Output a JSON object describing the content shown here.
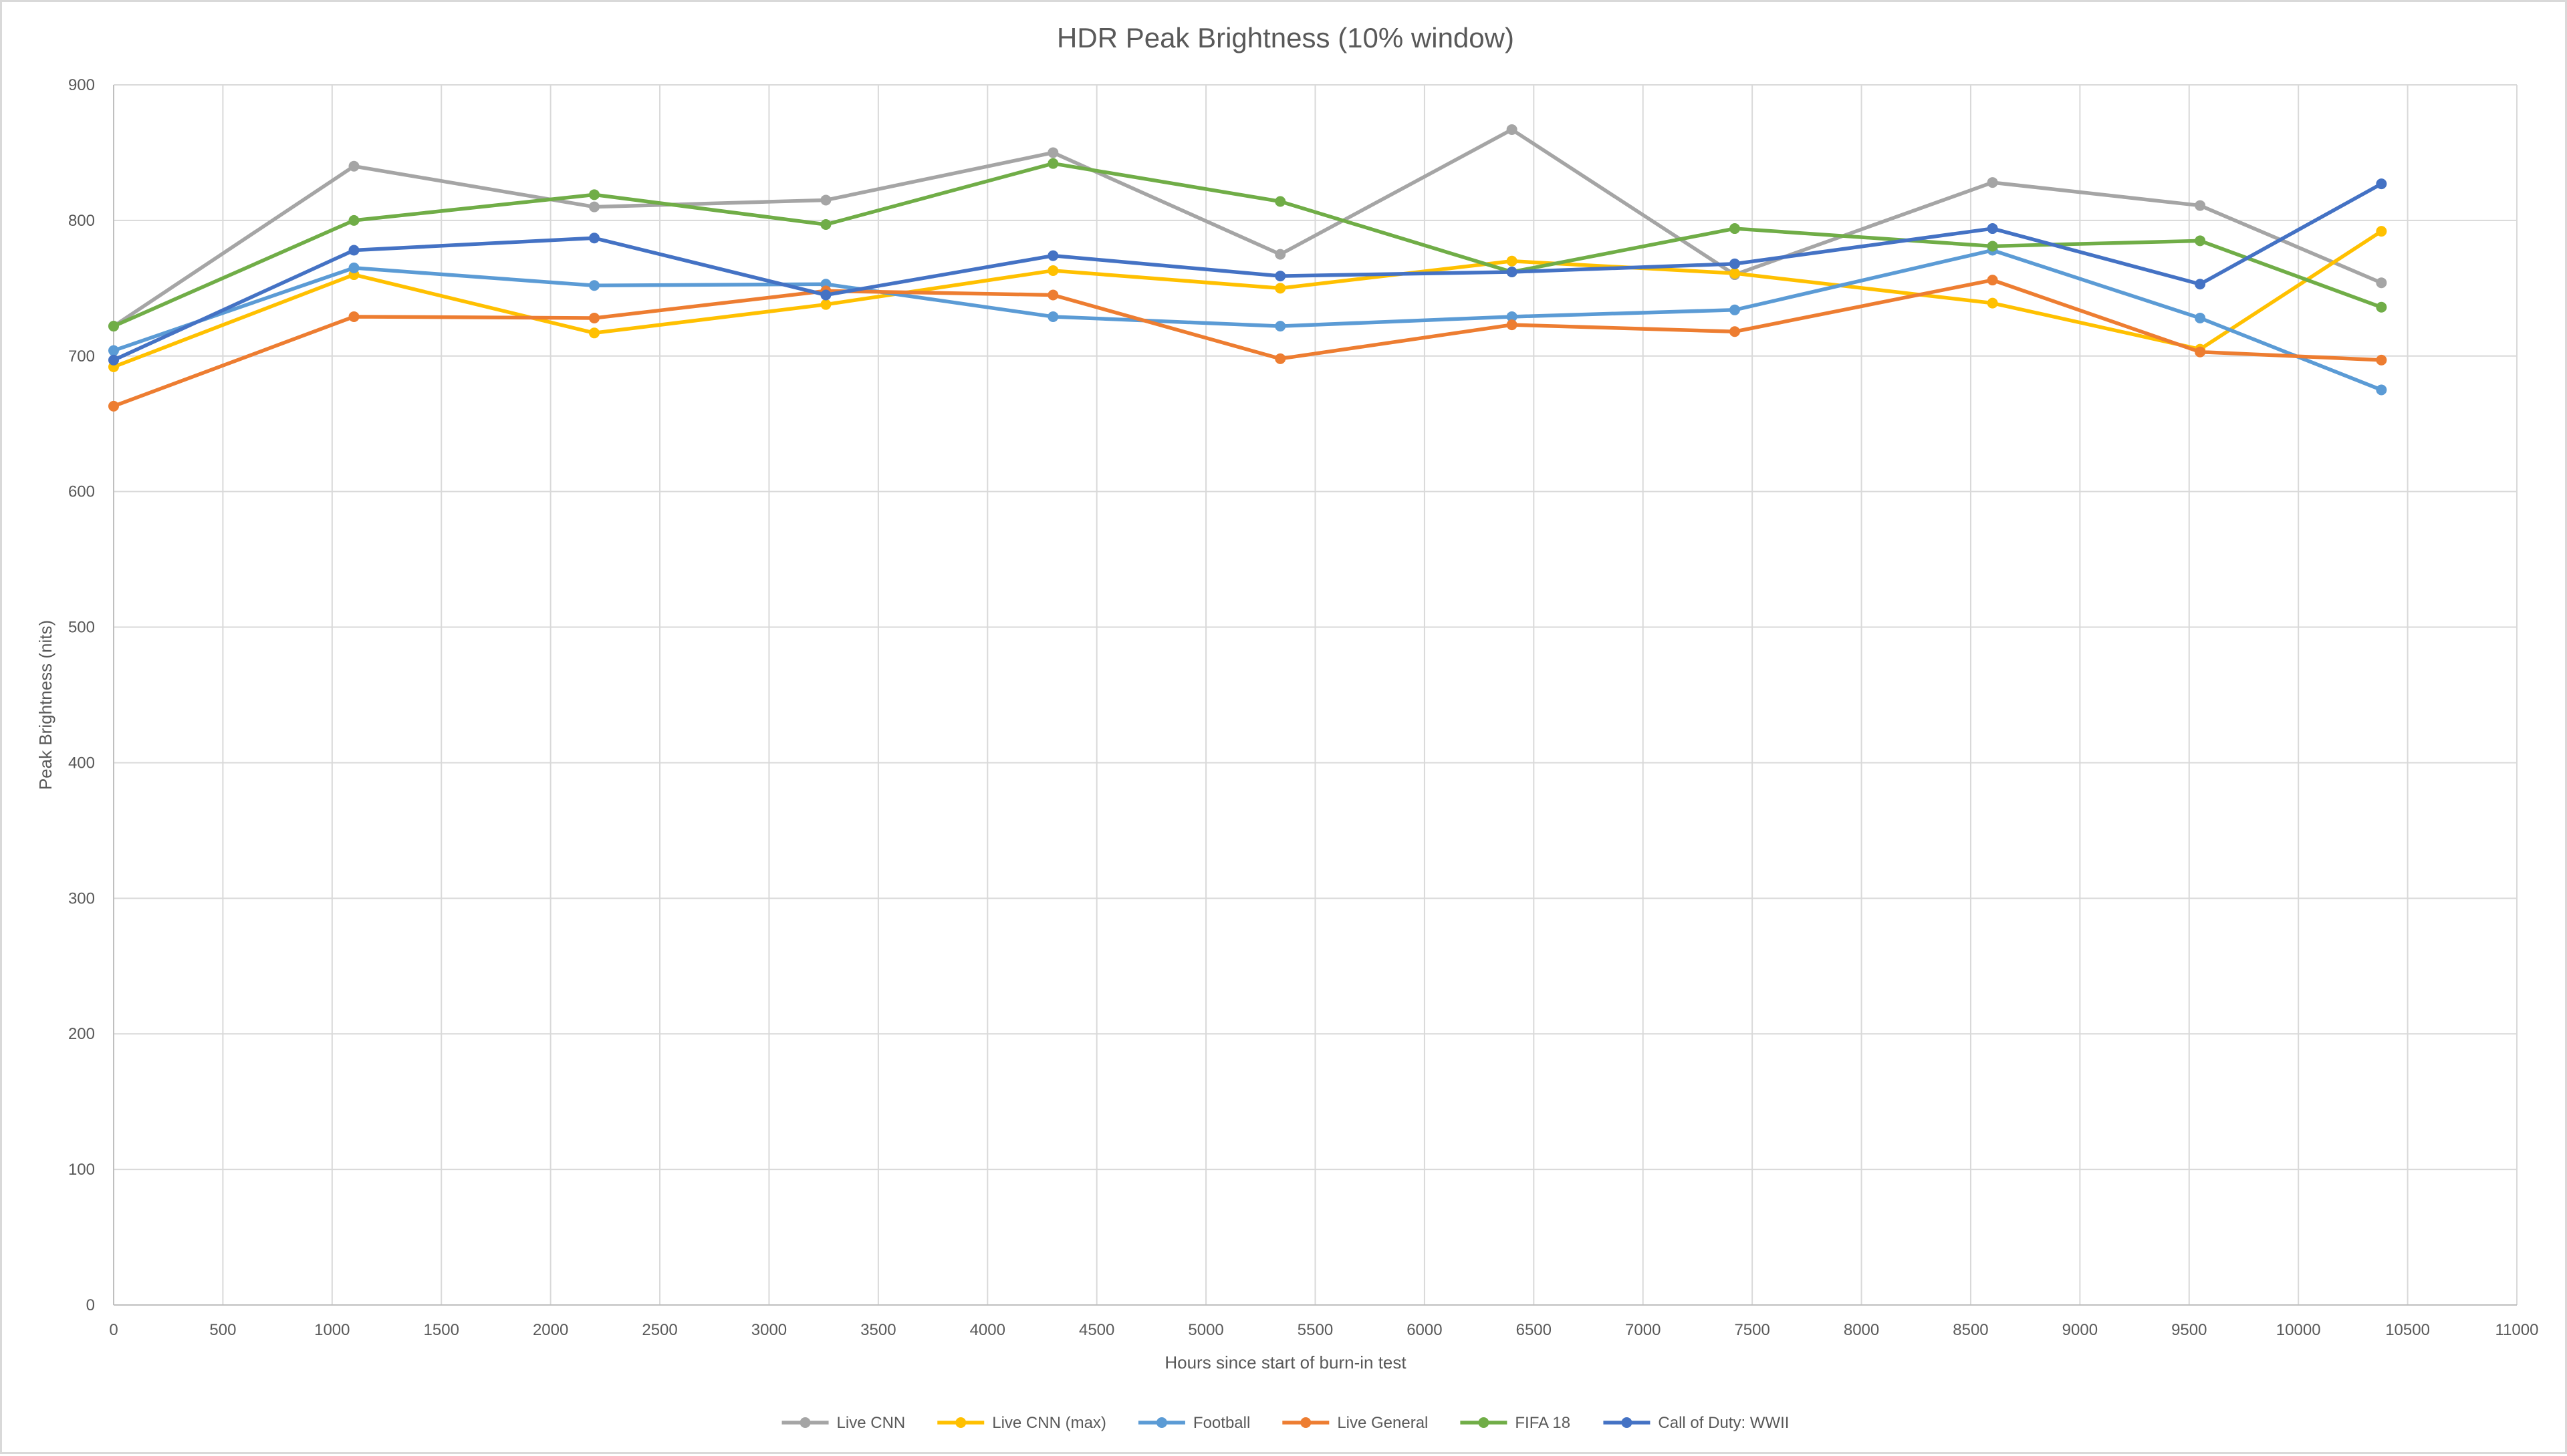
{
  "chart_data": {
    "type": "line",
    "title": "HDR Peak Brightness (10% window)",
    "xlabel": "Hours since start of burn-in test",
    "ylabel": "Peak Brightness (nits)",
    "xlim": [
      0,
      11000
    ],
    "ylim": [
      0,
      900
    ],
    "x_ticks": [
      0,
      500,
      1000,
      1500,
      2000,
      2500,
      3000,
      3500,
      4000,
      4500,
      5000,
      5500,
      6000,
      6500,
      7000,
      7500,
      8000,
      8500,
      9000,
      9500,
      10000,
      10500,
      11000
    ],
    "y_ticks": [
      0,
      100,
      200,
      300,
      400,
      500,
      600,
      700,
      800,
      900
    ],
    "grid": "both",
    "legend": "bottom",
    "x": [
      0,
      1100,
      2200,
      3260,
      4300,
      5340,
      6400,
      7420,
      8600,
      9550,
      10380
    ],
    "series": [
      {
        "name": "Live CNN",
        "color": "#a5a5a5",
        "values": [
          722,
          840,
          810,
          815,
          850,
          775,
          867,
          760,
          828,
          811,
          754
        ]
      },
      {
        "name": "Live CNN (max)",
        "color": "#ffc000",
        "values": [
          692,
          760,
          717,
          738,
          763,
          750,
          770,
          761,
          739,
          705,
          792
        ]
      },
      {
        "name": "Football",
        "color": "#5b9bd5",
        "values": [
          704,
          765,
          752,
          753,
          729,
          722,
          729,
          734,
          778,
          728,
          675
        ]
      },
      {
        "name": "Live General",
        "color": "#ed7d31",
        "values": [
          663,
          729,
          728,
          748,
          745,
          698,
          723,
          718,
          756,
          703,
          697
        ]
      },
      {
        "name": "FIFA 18",
        "color": "#70ad47",
        "values": [
          722,
          800,
          819,
          797,
          842,
          814,
          762,
          794,
          781,
          785,
          736
        ]
      },
      {
        "name": "Call of Duty: WWII",
        "color": "#4472c4",
        "values": [
          697,
          778,
          787,
          745,
          774,
          759,
          762,
          768,
          794,
          753,
          827
        ]
      }
    ]
  },
  "styles": {
    "grid_color": "#d9d9d9",
    "axis_color": "#bfbfbf",
    "text_color": "#595959"
  }
}
